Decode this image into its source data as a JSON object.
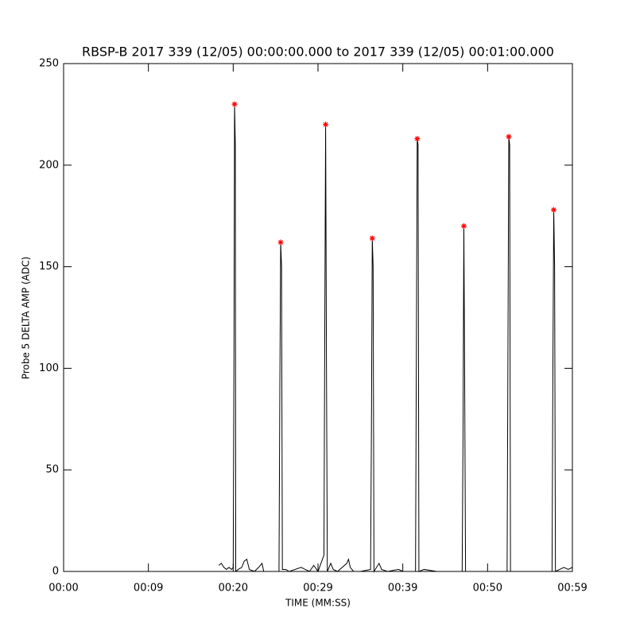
{
  "chart_data": {
    "type": "line",
    "title": "RBSP-B 2017 339 (12/05) 00:00:00.000 to 2017 339 (12/05) 00:01:00.000",
    "x_label": "TIME (MM:SS)",
    "y_label": "Probe 5 DELTA AMP (ADC)",
    "xlim": [
      0,
      60
    ],
    "xticks": [
      {
        "value": 0,
        "label": "00:00"
      },
      {
        "value": 10,
        "label": "00:09"
      },
      {
        "value": 20,
        "label": "00:20"
      },
      {
        "value": 30,
        "label": "00:29"
      },
      {
        "value": 40,
        "label": "00:39"
      },
      {
        "value": 50,
        "label": "00:50"
      },
      {
        "value": 60,
        "label": "00:59"
      }
    ],
    "ylim": [
      0,
      250
    ],
    "yticks": [
      0,
      50,
      100,
      150,
      200,
      250
    ],
    "series": [
      {
        "kind": "line",
        "color": "#000000",
        "x": [
          18.3,
          18.6,
          18.9,
          19.2,
          19.5,
          19.8,
          20.0,
          20.1,
          20.16,
          20.25,
          20.3,
          20.6,
          21.0,
          21.3,
          21.6,
          21.9,
          22.5,
          23.0,
          23.4,
          23.6,
          24.5,
          25.4,
          25.5,
          25.6,
          25.7,
          25.8,
          26.2,
          26.6,
          28.0,
          28.5,
          29.0,
          29.5,
          30.0,
          30.7,
          30.8,
          30.9,
          31.0,
          31.1,
          31.5,
          31.8,
          32.3,
          33.4,
          33.6,
          33.8,
          34.2,
          35.0,
          36.2,
          36.3,
          36.4,
          36.5,
          36.6,
          37.2,
          37.5,
          38.2,
          39.5,
          40.0,
          41.5,
          41.6,
          41.7,
          41.8,
          41.9,
          42.5,
          44.0,
          47.0,
          47.1,
          47.2,
          47.3,
          47.4,
          52.3,
          52.4,
          52.5,
          52.6,
          52.7,
          56.2,
          57.6,
          57.7,
          57.8,
          57.9,
          58.0,
          58.5,
          59.0,
          59.5,
          60.0
        ],
        "values": [
          3,
          4,
          2,
          1,
          2,
          1,
          2,
          120,
          230,
          210,
          0,
          1,
          2,
          5,
          6,
          1,
          0,
          2,
          4,
          0,
          0,
          0,
          90,
          162,
          150,
          1,
          1,
          0,
          2,
          1,
          0,
          3,
          0,
          8,
          120,
          220,
          100,
          0,
          4,
          1,
          0,
          4,
          6,
          2,
          0,
          0,
          1,
          70,
          164,
          150,
          0,
          4,
          1,
          0,
          1,
          0,
          0,
          110,
          213,
          210,
          0,
          1,
          0,
          0,
          65,
          170,
          90,
          0,
          0,
          108,
          214,
          210,
          0,
          0,
          0,
          100,
          178,
          150,
          0,
          1,
          2,
          1,
          2
        ]
      },
      {
        "kind": "scatter",
        "color": "#ff0000",
        "x": [
          20.16,
          25.6,
          30.9,
          36.4,
          41.7,
          47.2,
          52.5,
          57.8
        ],
        "values": [
          230,
          162,
          220,
          164,
          213,
          170,
          214,
          178
        ]
      }
    ]
  }
}
